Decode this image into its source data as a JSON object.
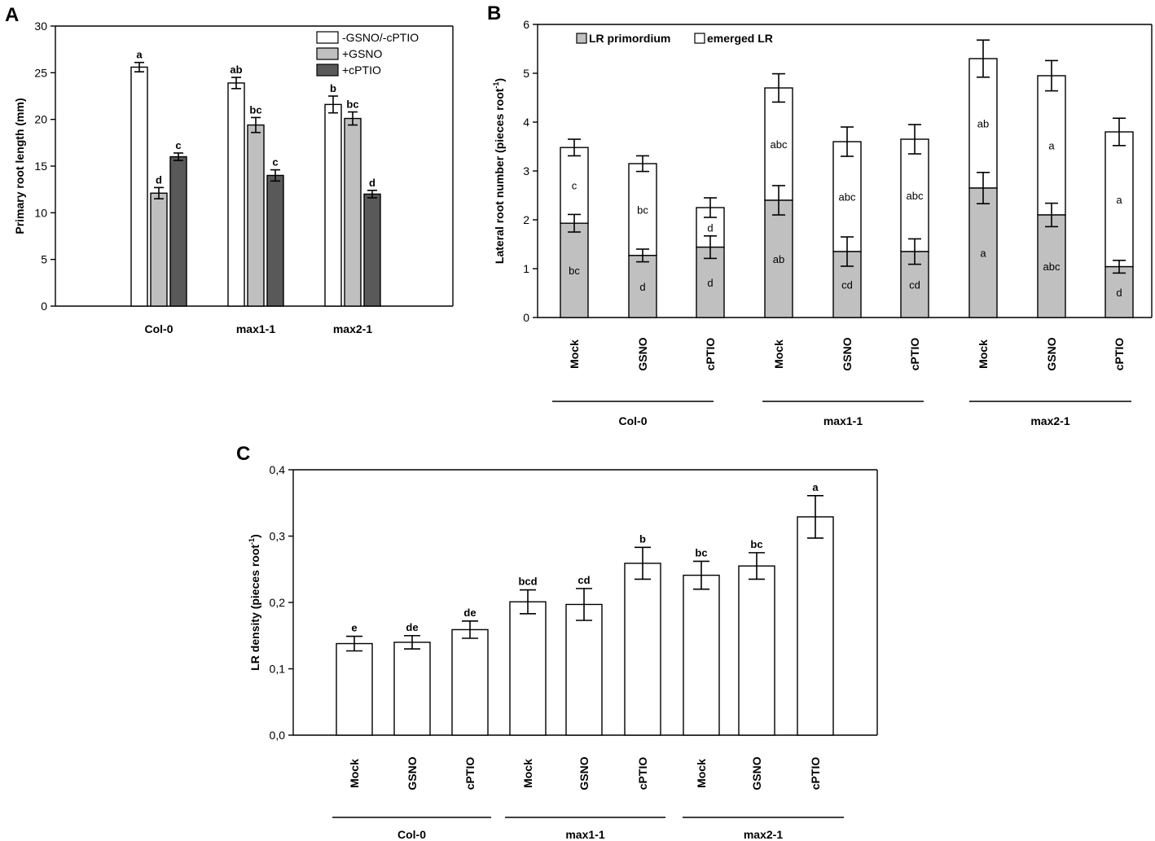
{
  "chart_data": [
    {
      "panel": "A",
      "type": "bar",
      "ylabel": "Primary root length (mm)",
      "xlabel": "",
      "ylim": [
        0,
        30
      ],
      "yticks": [
        "0",
        "5",
        "10",
        "15",
        "20",
        "25",
        "30"
      ],
      "legend_position": "top-right",
      "categories": [
        "Col-0",
        "max1-1",
        "max2-1"
      ],
      "series": [
        {
          "name": "-GSNO/-cPTIO",
          "color": "#ffffff",
          "values": [
            25.6,
            23.9,
            21.6
          ],
          "errors": [
            0.5,
            0.6,
            0.9
          ],
          "letters": [
            "a",
            "ab",
            "b"
          ]
        },
        {
          "name": "+GSNO",
          "color": "#bfbfbf",
          "values": [
            12.1,
            19.4,
            20.1
          ],
          "errors": [
            0.6,
            0.8,
            0.7
          ],
          "letters": [
            "d",
            "bc",
            "bc"
          ]
        },
        {
          "name": "+cPTIO",
          "color": "#595959",
          "values": [
            16.0,
            14.0,
            12.0
          ],
          "errors": [
            0.4,
            0.6,
            0.4
          ],
          "letters": [
            "c",
            "c",
            "d"
          ]
        }
      ]
    },
    {
      "panel": "B",
      "type": "bar",
      "stacked": true,
      "ylabel": "Lateral root number (pieces root",
      "ylabel_sup": "-1",
      "ylabel_end": ")",
      "ylim": [
        0,
        6
      ],
      "yticks": [
        "0",
        "1",
        "2",
        "3",
        "4",
        "5",
        "6"
      ],
      "legend_position": "top-left",
      "categories": [
        "Mock",
        "GSNO",
        "cPTIO",
        "Mock",
        "GSNO",
        "cPTIO",
        "Mock",
        "GSNO",
        "cPTIO"
      ],
      "groups": [
        "Col-0",
        "max1-1",
        "max2-1"
      ],
      "series": [
        {
          "name": "LR primordium",
          "color": "#c0c0c0",
          "values": [
            1.93,
            1.27,
            1.44,
            2.4,
            1.35,
            1.35,
            2.65,
            2.1,
            1.04
          ],
          "errors": [
            0.18,
            0.13,
            0.23,
            0.3,
            0.3,
            0.26,
            0.32,
            0.24,
            0.13
          ],
          "letters": [
            "bc",
            "d",
            "d",
            "ab",
            "cd",
            "cd",
            "a",
            "abc",
            "d"
          ]
        },
        {
          "name": "emerged LR",
          "color": "#ffffff",
          "values": [
            1.55,
            1.88,
            0.81,
            2.3,
            2.25,
            2.3,
            2.65,
            2.85,
            2.76
          ],
          "errors": [
            0.17,
            0.16,
            0.2,
            0.29,
            0.3,
            0.3,
            0.38,
            0.31,
            0.28
          ],
          "letters": [
            "c",
            "bc",
            "d",
            "abc",
            "abc",
            "abc",
            "ab",
            "a",
            "a"
          ]
        }
      ]
    },
    {
      "panel": "C",
      "type": "bar",
      "ylabel": "LR density (pieces root",
      "ylabel_sup": "-1",
      "ylabel_end": ")",
      "ylim": [
        0,
        0.4
      ],
      "yticks": [
        "0,0",
        "0,1",
        "0,2",
        "0,3",
        "0,4"
      ],
      "categories": [
        "Mock",
        "GSNO",
        "cPTIO",
        "Mock",
        "GSNO",
        "cPTIO",
        "Mock",
        "GSNO",
        "cPTIO"
      ],
      "groups": [
        "Col-0",
        "max1-1",
        "max2-1"
      ],
      "series": [
        {
          "name": "LR density",
          "color": "#ffffff",
          "values": [
            0.138,
            0.14,
            0.159,
            0.201,
            0.197,
            0.259,
            0.241,
            0.255,
            0.329
          ],
          "errors": [
            0.011,
            0.01,
            0.013,
            0.018,
            0.024,
            0.024,
            0.021,
            0.02,
            0.032
          ],
          "letters": [
            "e",
            "de",
            "de",
            "bcd",
            "cd",
            "b",
            "bc",
            "bc",
            "a"
          ]
        }
      ]
    }
  ]
}
